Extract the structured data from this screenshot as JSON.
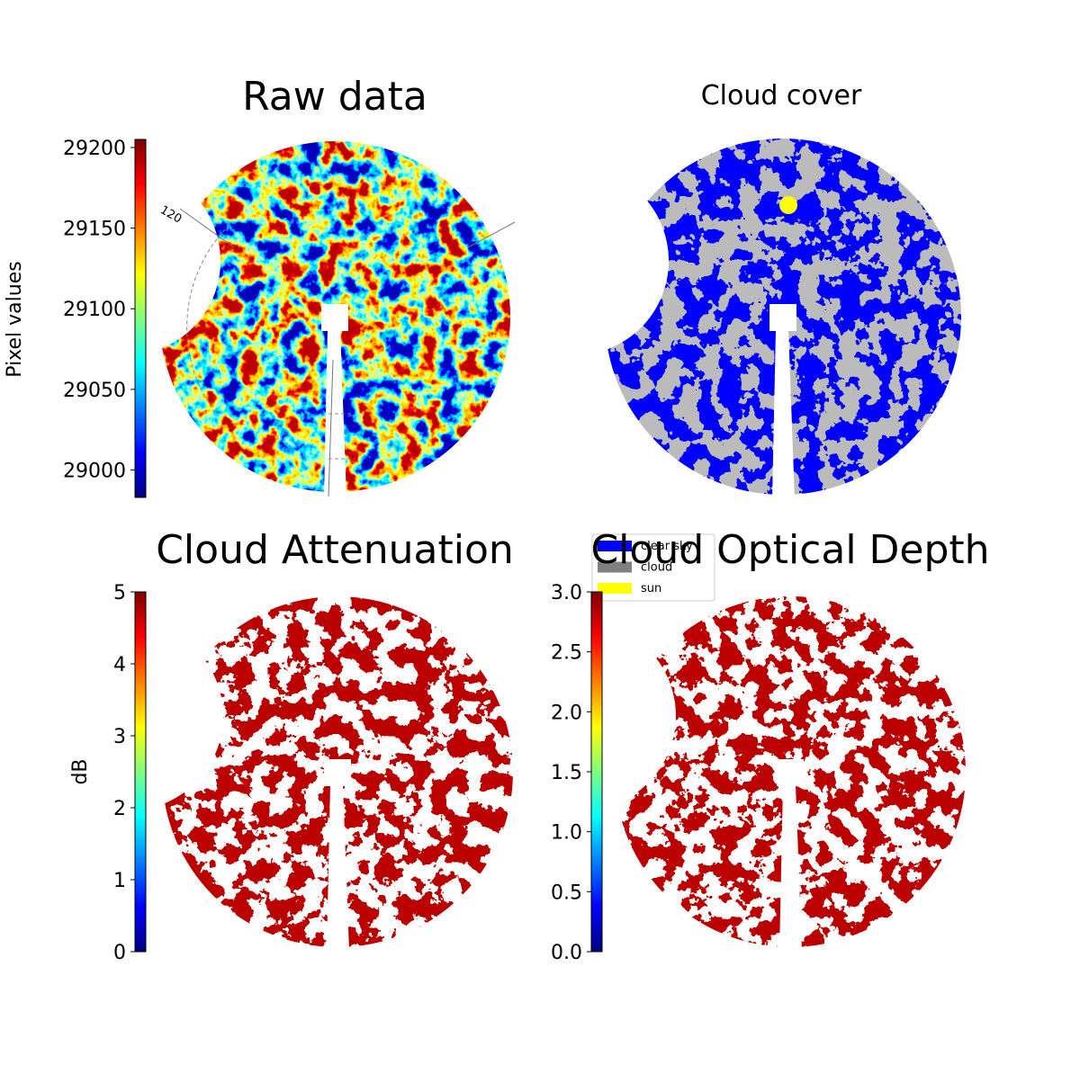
{
  "chart_data": [
    {
      "type": "image",
      "title": "Raw data",
      "colormap": "jet",
      "colorbar_label": "Pixel values",
      "clim": [
        28983,
        29205
      ],
      "cticks": [
        29000,
        29050,
        29100,
        29150,
        29200
      ],
      "annotations": [
        "120"
      ]
    },
    {
      "type": "image",
      "title": "Cloud cover",
      "series": [
        {
          "name": "clear sky",
          "color": "#0000ff"
        },
        {
          "name": "cloud",
          "color": "#808080"
        },
        {
          "name": "sun",
          "color": "#ffff00"
        }
      ]
    },
    {
      "type": "image",
      "title": "Cloud Attenuation",
      "colormap": "jet",
      "colorbar_label": "dB",
      "clim": [
        0,
        5
      ],
      "cticks": [
        0,
        1,
        2,
        3,
        4,
        5
      ]
    },
    {
      "type": "image",
      "title": "Cloud Optical Depth",
      "colormap": "jet",
      "clim": [
        0,
        3
      ],
      "cticks": [
        {
          "value": 0,
          "label": "0.0"
        },
        0.5,
        {
          "value": 1,
          "label": "1.0"
        },
        1.5,
        {
          "value": 2,
          "label": "2.0"
        },
        2.5,
        {
          "value": 3,
          "label": "3.0"
        }
      ]
    }
  ]
}
